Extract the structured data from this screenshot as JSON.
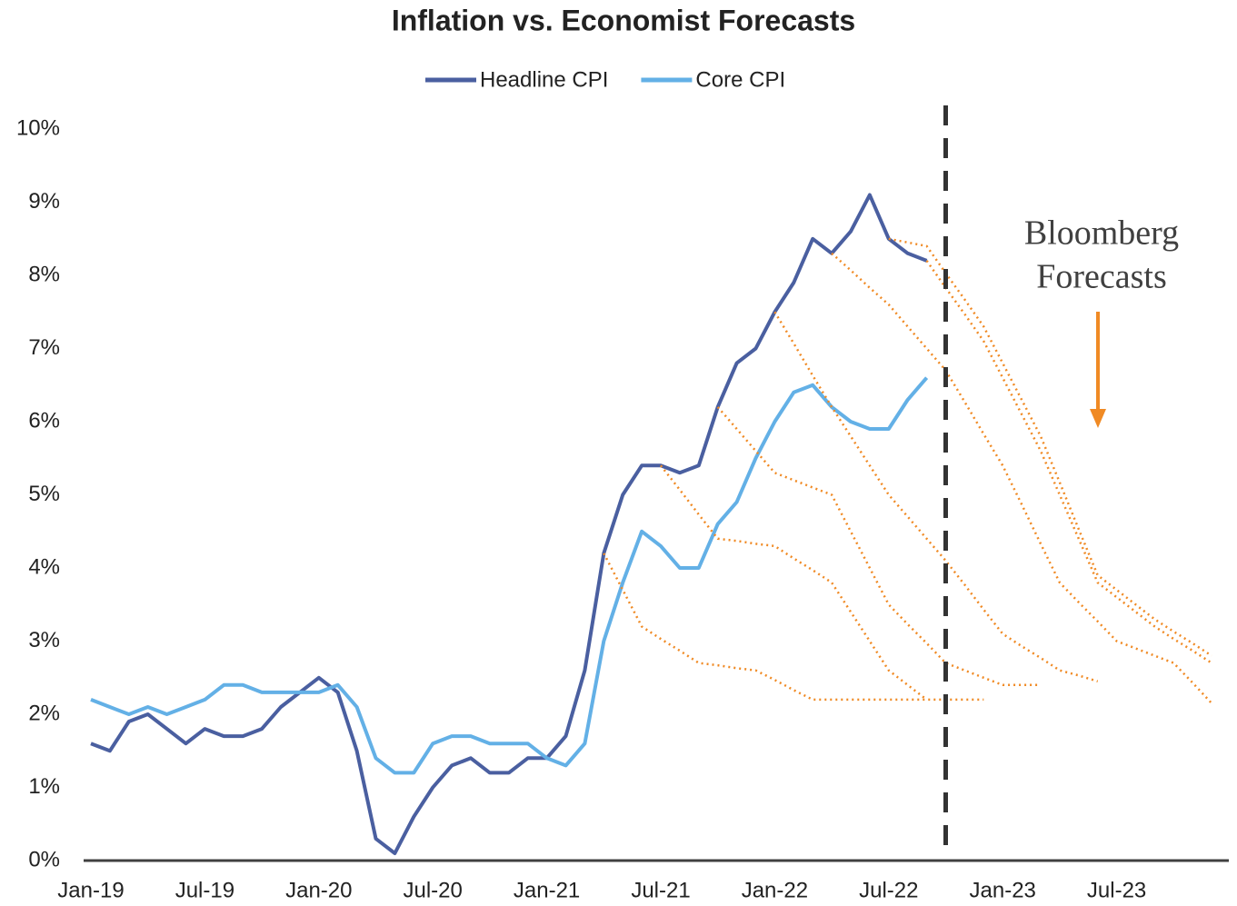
{
  "chart_data": {
    "type": "line",
    "title": "Inflation vs. Economist Forecasts",
    "annotation": [
      "Bloomberg",
      "Forecasts"
    ],
    "vline": 45,
    "categories": [
      "Jan-19",
      null,
      null,
      null,
      null,
      null,
      "Jul-19",
      null,
      null,
      null,
      null,
      null,
      "Jan-20",
      null,
      null,
      null,
      null,
      null,
      "Jul-20",
      null,
      null,
      null,
      null,
      null,
      "Jan-21",
      null,
      null,
      null,
      null,
      null,
      "Jul-21",
      null,
      null,
      null,
      null,
      null,
      "Jan-22",
      null,
      null,
      null,
      null,
      null,
      "Jul-22",
      null,
      null,
      null,
      null,
      null,
      "Jan-23",
      null,
      null,
      null,
      null,
      null,
      "Jul-23",
      null,
      null,
      null,
      null,
      null
    ],
    "ylim": [
      0,
      10
    ],
    "yticks": [
      {
        "value": 0,
        "label": "0%"
      },
      {
        "value": 1,
        "label": "1%"
      },
      {
        "value": 2,
        "label": "2%"
      },
      {
        "value": 3,
        "label": "3%"
      },
      {
        "value": 4,
        "label": "4%"
      },
      {
        "value": 5,
        "label": "5%"
      },
      {
        "value": 6,
        "label": "6%"
      },
      {
        "value": 7,
        "label": "7%"
      },
      {
        "value": 8,
        "label": "8%"
      },
      {
        "value": 9,
        "label": "9%"
      },
      {
        "value": 10,
        "label": "10%"
      }
    ],
    "grid": false,
    "legend": "top",
    "series": [
      {
        "name": "Headline CPI",
        "color": "#4a5fa0",
        "style": "solid",
        "values": [
          1.6,
          1.5,
          1.9,
          2.0,
          1.8,
          1.6,
          1.8,
          1.7,
          1.7,
          1.8,
          2.1,
          2.3,
          2.5,
          2.3,
          1.5,
          0.3,
          0.1,
          0.6,
          1.0,
          1.3,
          1.4,
          1.2,
          1.2,
          1.4,
          1.4,
          1.7,
          2.6,
          4.2,
          5.0,
          5.4,
          5.4,
          5.3,
          5.4,
          6.2,
          6.8,
          7.0,
          7.5,
          7.9,
          8.5,
          8.3,
          8.6,
          9.1,
          8.5,
          8.3,
          8.2,
          null,
          null,
          null,
          null,
          null,
          null,
          null,
          null,
          null,
          null,
          null,
          null,
          null,
          null,
          null
        ]
      },
      {
        "name": "Core CPI",
        "color": "#63b0e6",
        "style": "solid",
        "values": [
          2.2,
          2.1,
          2.0,
          2.1,
          2.0,
          2.1,
          2.2,
          2.4,
          2.4,
          2.3,
          2.3,
          2.3,
          2.3,
          2.4,
          2.1,
          1.4,
          1.2,
          1.2,
          1.6,
          1.7,
          1.7,
          1.6,
          1.6,
          1.6,
          1.4,
          1.3,
          1.6,
          3.0,
          3.8,
          4.5,
          4.3,
          4.0,
          4.0,
          4.6,
          4.9,
          5.5,
          6.0,
          6.4,
          6.5,
          6.2,
          6.0,
          5.9,
          5.9,
          6.3,
          6.6,
          null,
          null,
          null,
          null,
          null,
          null,
          null,
          null,
          null,
          null,
          null,
          null,
          null,
          null,
          null
        ]
      },
      {
        "color": "#f08a24",
        "style": "dotted",
        "values": [
          null,
          null,
          null,
          null,
          null,
          null,
          null,
          null,
          null,
          null,
          null,
          null,
          null,
          null,
          null,
          null,
          null,
          null,
          null,
          null,
          null,
          null,
          null,
          null,
          null,
          null,
          null,
          4.2,
          3.7,
          3.2,
          3.03,
          2.87,
          2.7,
          2.67,
          2.63,
          2.6,
          2.47,
          2.33,
          2.2,
          2.2,
          2.2,
          2.2,
          2.2,
          2.2,
          2.2,
          2.2,
          2.2,
          2.2,
          null,
          null,
          null,
          null,
          null,
          null,
          null,
          null,
          null,
          null,
          null,
          null
        ]
      },
      {
        "color": "#f08a24",
        "style": "dotted",
        "values": [
          null,
          null,
          null,
          null,
          null,
          null,
          null,
          null,
          null,
          null,
          null,
          null,
          null,
          null,
          null,
          null,
          null,
          null,
          null,
          null,
          null,
          null,
          null,
          null,
          null,
          null,
          null,
          null,
          null,
          null,
          5.4,
          5.07,
          4.73,
          4.4,
          4.37,
          4.33,
          4.3,
          4.13,
          3.97,
          3.8,
          3.4,
          3.0,
          2.6,
          2.4,
          2.2,
          null,
          null,
          null,
          null,
          null,
          null,
          null,
          null,
          null,
          null,
          null,
          null,
          null,
          null,
          null
        ]
      },
      {
        "color": "#f08a24",
        "style": "dotted",
        "values": [
          null,
          null,
          null,
          null,
          null,
          null,
          null,
          null,
          null,
          null,
          null,
          null,
          null,
          null,
          null,
          null,
          null,
          null,
          null,
          null,
          null,
          null,
          null,
          null,
          null,
          null,
          null,
          null,
          null,
          null,
          null,
          null,
          null,
          6.2,
          5.9,
          5.6,
          5.3,
          5.2,
          5.1,
          5.0,
          4.5,
          4.0,
          3.5,
          3.23,
          2.97,
          2.7,
          2.6,
          2.5,
          2.4,
          2.4,
          2.4,
          null,
          null,
          null,
          null,
          null,
          null,
          null,
          null,
          null
        ]
      },
      {
        "color": "#f08a24",
        "style": "dotted",
        "values": [
          null,
          null,
          null,
          null,
          null,
          null,
          null,
          null,
          null,
          null,
          null,
          null,
          null,
          null,
          null,
          null,
          null,
          null,
          null,
          null,
          null,
          null,
          null,
          null,
          null,
          null,
          null,
          null,
          null,
          null,
          null,
          null,
          null,
          null,
          null,
          null,
          7.5,
          7.07,
          6.63,
          6.2,
          5.8,
          5.4,
          5.0,
          4.7,
          4.4,
          4.1,
          3.77,
          3.43,
          3.1,
          2.93,
          2.77,
          2.6,
          2.53,
          2.45,
          null,
          null,
          null,
          null,
          null,
          null
        ]
      },
      {
        "color": "#f08a24",
        "style": "dotted",
        "values": [
          null,
          null,
          null,
          null,
          null,
          null,
          null,
          null,
          null,
          null,
          null,
          null,
          null,
          null,
          null,
          null,
          null,
          null,
          null,
          null,
          null,
          null,
          null,
          null,
          null,
          null,
          null,
          null,
          null,
          null,
          null,
          null,
          null,
          null,
          null,
          null,
          null,
          null,
          null,
          8.3,
          8.07,
          7.83,
          7.6,
          7.3,
          7.0,
          6.7,
          6.27,
          5.83,
          5.4,
          4.87,
          4.33,
          3.8,
          3.53,
          3.27,
          3.0,
          2.9,
          2.8,
          2.7,
          2.43,
          2.15
        ]
      },
      {
        "color": "#f08a24",
        "style": "dotted",
        "values": [
          null,
          null,
          null,
          null,
          null,
          null,
          null,
          null,
          null,
          null,
          null,
          null,
          null,
          null,
          null,
          null,
          null,
          null,
          null,
          null,
          null,
          null,
          null,
          null,
          null,
          null,
          null,
          null,
          null,
          null,
          null,
          null,
          null,
          null,
          null,
          null,
          null,
          null,
          null,
          null,
          null,
          null,
          8.5,
          8.45,
          8.4,
          8.03,
          7.67,
          7.3,
          6.8,
          6.3,
          5.8,
          5.17,
          4.53,
          3.9,
          3.7,
          3.5,
          3.3,
          3.13,
          2.97,
          2.8
        ]
      },
      {
        "color": "#f08a24",
        "style": "dotted",
        "values": [
          null,
          null,
          null,
          null,
          null,
          null,
          null,
          null,
          null,
          null,
          null,
          null,
          null,
          null,
          null,
          null,
          null,
          null,
          null,
          null,
          null,
          null,
          null,
          null,
          null,
          null,
          null,
          null,
          null,
          null,
          null,
          null,
          null,
          null,
          null,
          null,
          null,
          null,
          null,
          null,
          null,
          null,
          null,
          null,
          8.2,
          7.83,
          7.47,
          7.1,
          6.6,
          6.1,
          5.6,
          5.0,
          4.4,
          3.8,
          3.6,
          3.4,
          3.2,
          3.03,
          2.87,
          2.7
        ]
      }
    ]
  }
}
